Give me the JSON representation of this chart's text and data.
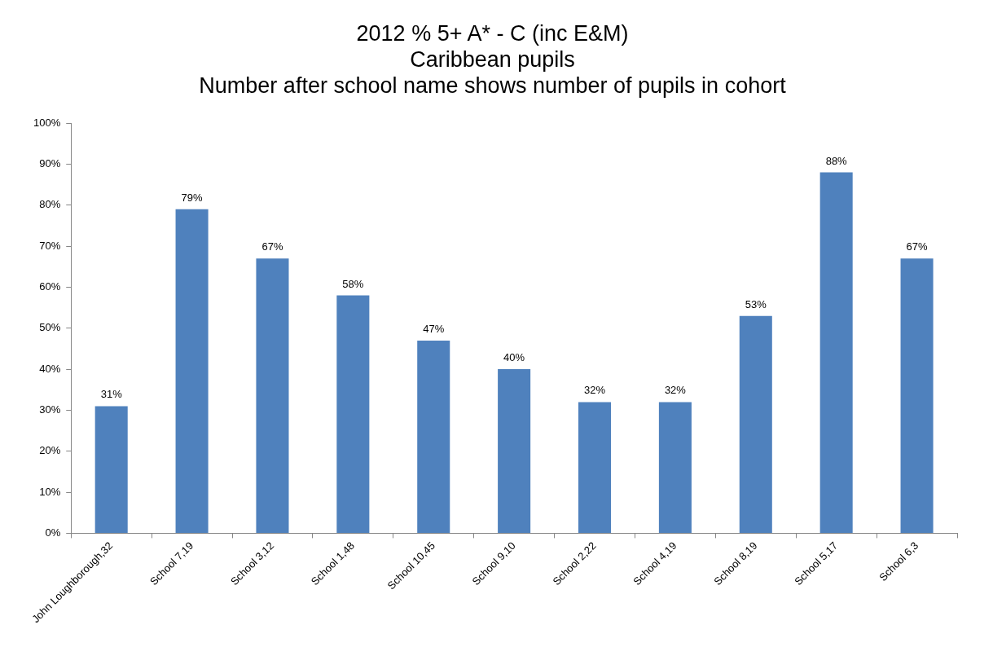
{
  "chart_data": {
    "type": "bar",
    "title": "2012 % 5+ A* - C (inc E&M)",
    "subtitle": "Caribbean pupils\nNumber after school name shows number of pupils in cohort",
    "categories": [
      "John Loughborough,32",
      "School 7,19",
      "School 3,12",
      "School 1,48",
      "School 10,45",
      "School 9,10",
      "School 2,22",
      "School 4,19",
      "School 8,19",
      "School 5,17",
      "School 6,3"
    ],
    "values": [
      31,
      79,
      67,
      58,
      47,
      40,
      32,
      32,
      53,
      88,
      67
    ],
    "value_labels": [
      "31%",
      "79%",
      "67%",
      "58%",
      "47%",
      "40%",
      "32%",
      "32%",
      "53%",
      "88%",
      "67%"
    ],
    "color": "#4f81bd",
    "ylim": [
      0,
      100
    ],
    "yticks": [
      {
        "value": 0,
        "label": "0%"
      },
      {
        "value": 10,
        "label": "10%"
      },
      {
        "value": 20,
        "label": "20%"
      },
      {
        "value": 30,
        "label": "30%"
      },
      {
        "value": 40,
        "label": "40%"
      },
      {
        "value": 50,
        "label": "50%"
      },
      {
        "value": 60,
        "label": "60%"
      },
      {
        "value": 70,
        "label": "70%"
      },
      {
        "value": 80,
        "label": "80%"
      },
      {
        "value": 90,
        "label": "90%"
      },
      {
        "value": 100,
        "label": "100%"
      }
    ],
    "grid": false,
    "legend": false
  }
}
